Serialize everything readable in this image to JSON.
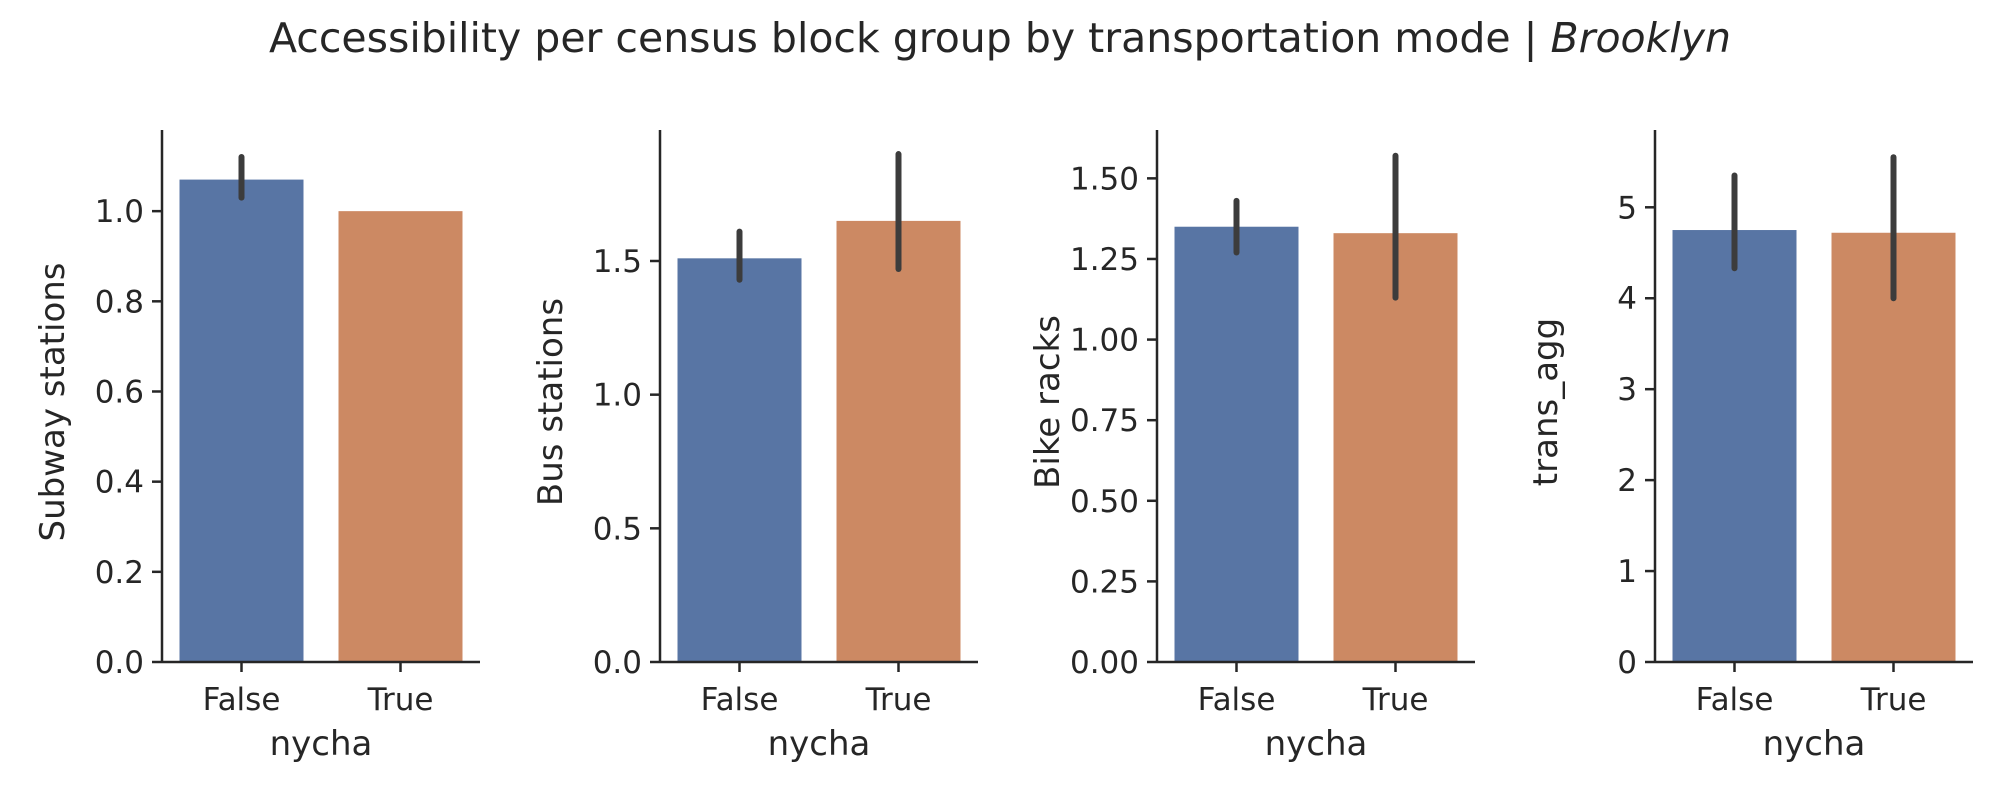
{
  "title": {
    "main": "Accessibility per census block group by transportation mode | ",
    "city": "Brooklyn"
  },
  "colors": {
    "false_bar": "#5875a4",
    "true_bar": "#cc8963",
    "error_bar": "#3c3c3c",
    "axis": "#262626"
  },
  "chart_data": [
    {
      "type": "bar",
      "xlabel": "nycha",
      "ylabel": "Subway stations",
      "categories": [
        "False",
        "True"
      ],
      "values": [
        1.07,
        1.0
      ],
      "ci": [
        [
          1.03,
          1.12
        ],
        [
          1.0,
          1.0
        ]
      ],
      "ylim": [
        0,
        1.18
      ],
      "yticks": [
        0.0,
        0.2,
        0.4,
        0.6,
        0.8,
        1.0
      ],
      "ytick_labels": [
        "0.0",
        "0.2",
        "0.4",
        "0.6",
        "0.8",
        "1.0"
      ],
      "grid": false
    },
    {
      "type": "bar",
      "xlabel": "nycha",
      "ylabel": "Bus stations",
      "categories": [
        "False",
        "True"
      ],
      "values": [
        1.51,
        1.65
      ],
      "ci": [
        [
          1.43,
          1.61
        ],
        [
          1.47,
          1.9
        ]
      ],
      "ylim": [
        0,
        1.99
      ],
      "yticks": [
        0.0,
        0.5,
        1.0,
        1.5
      ],
      "ytick_labels": [
        "0.0",
        "0.5",
        "1.0",
        "1.5"
      ],
      "grid": false
    },
    {
      "type": "bar",
      "xlabel": "nycha",
      "ylabel": "Bike racks",
      "categories": [
        "False",
        "True"
      ],
      "values": [
        1.35,
        1.33
      ],
      "ci": [
        [
          1.27,
          1.43
        ],
        [
          1.13,
          1.57
        ]
      ],
      "ylim": [
        0,
        1.65
      ],
      "yticks": [
        0.0,
        0.25,
        0.5,
        0.75,
        1.0,
        1.25,
        1.5
      ],
      "ytick_labels": [
        "0.00",
        "0.25",
        "0.50",
        "0.75",
        "1.00",
        "1.25",
        "1.50"
      ],
      "grid": false
    },
    {
      "type": "bar",
      "xlabel": "nycha",
      "ylabel": "trans_agg",
      "categories": [
        "False",
        "True"
      ],
      "values": [
        4.75,
        4.72
      ],
      "ci": [
        [
          4.33,
          5.35
        ],
        [
          4.0,
          5.55
        ]
      ],
      "ylim": [
        0,
        5.85
      ],
      "yticks": [
        0,
        1,
        2,
        3,
        4,
        5
      ],
      "ytick_labels": [
        "0",
        "1",
        "2",
        "3",
        "4",
        "5"
      ],
      "grid": false
    }
  ]
}
